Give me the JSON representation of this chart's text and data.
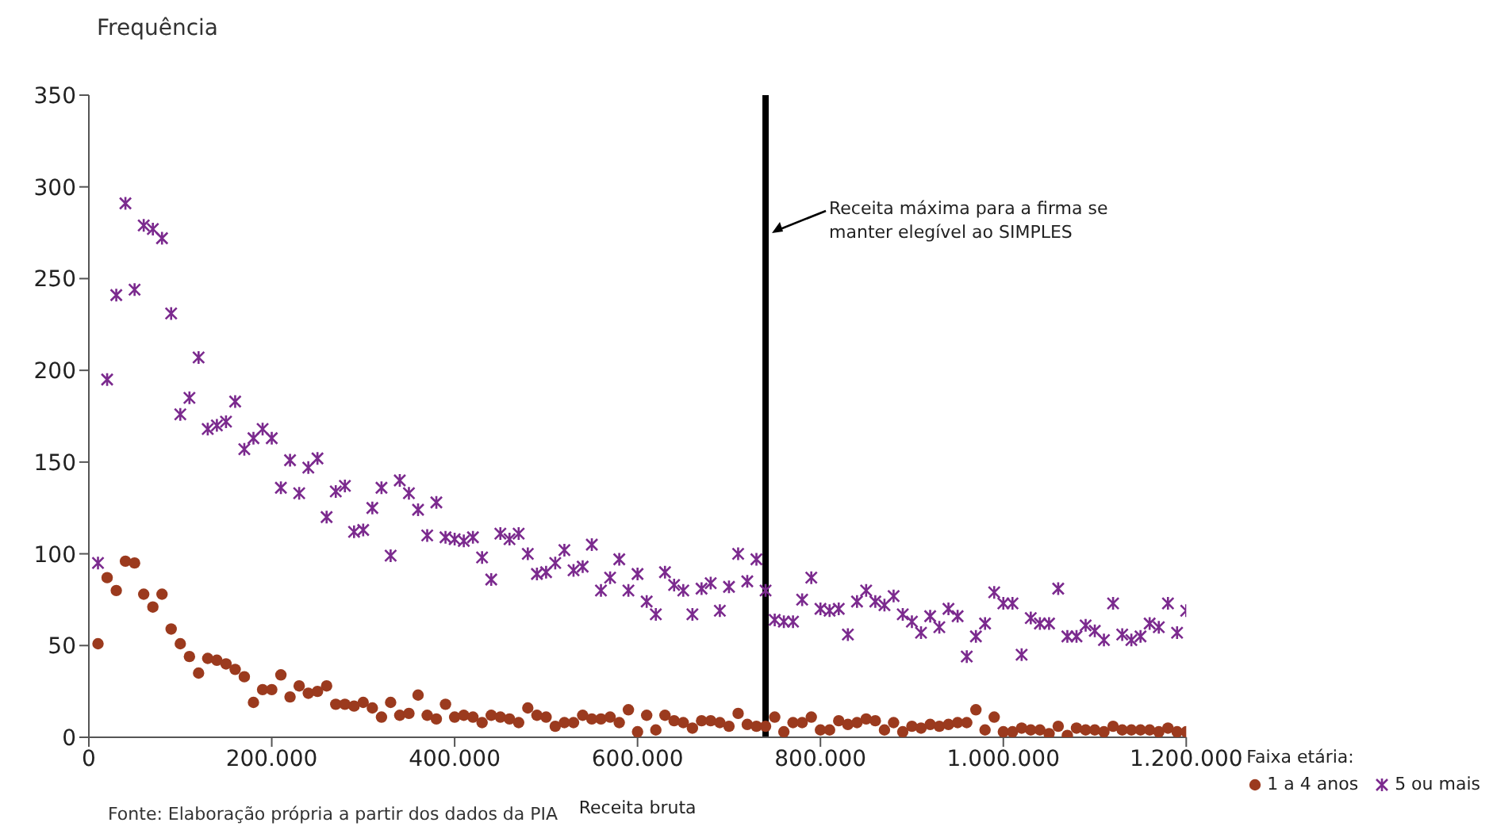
{
  "chart_data": {
    "type": "scatter",
    "ylabel": "Frequência",
    "xlabel": "Receita bruta",
    "legend_title": "Faixa etária:",
    "legend": "bottom right",
    "x": [
      10000,
      20000,
      30000,
      40000,
      50000,
      60000,
      70000,
      80000,
      90000,
      100000,
      110000,
      120000,
      130000,
      140000,
      150000,
      160000,
      170000,
      180000,
      190000,
      200000,
      210000,
      220000,
      230000,
      240000,
      250000,
      260000,
      270000,
      280000,
      290000,
      300000,
      310000,
      320000,
      330000,
      340000,
      350000,
      360000,
      370000,
      380000,
      390000,
      400000,
      410000,
      420000,
      430000,
      440000,
      450000,
      460000,
      470000,
      480000,
      490000,
      500000,
      510000,
      520000,
      530000,
      540000,
      550000,
      560000,
      570000,
      580000,
      590000,
      600000,
      610000,
      620000,
      630000,
      640000,
      650000,
      660000,
      670000,
      680000,
      690000,
      700000,
      710000,
      720000,
      730000,
      740000,
      750000,
      760000,
      770000,
      780000,
      790000,
      800000,
      810000,
      820000,
      830000,
      840000,
      850000,
      860000,
      870000,
      880000,
      890000,
      900000,
      910000,
      920000,
      930000,
      940000,
      950000,
      960000,
      970000,
      980000,
      990000,
      1000000,
      1010000,
      1020000,
      1030000,
      1040000,
      1050000,
      1060000,
      1070000,
      1080000,
      1090000,
      1100000,
      1110000,
      1120000,
      1130000,
      1140000,
      1150000,
      1160000,
      1170000,
      1180000,
      1190000,
      1200000
    ],
    "series": [
      {
        "name": "1 a 4 anos",
        "color": "#9b3a1e",
        "marker": "circle",
        "values": [
          51,
          87,
          80,
          96,
          95,
          78,
          71,
          78,
          59,
          51,
          44,
          35,
          43,
          42,
          40,
          37,
          33,
          19,
          26,
          26,
          34,
          22,
          28,
          24,
          25,
          28,
          18,
          18,
          17,
          19,
          16,
          11,
          19,
          12,
          13,
          23,
          12,
          10,
          18,
          11,
          12,
          11,
          8,
          12,
          11,
          10,
          8,
          16,
          12,
          11,
          6,
          8,
          8,
          12,
          10,
          10,
          11,
          8,
          15,
          3,
          12,
          4,
          12,
          9,
          8,
          5,
          9,
          9,
          8,
          6,
          13,
          7,
          6,
          6,
          11,
          3,
          8,
          8,
          11,
          4,
          4,
          9,
          7,
          8,
          10,
          9,
          4,
          8,
          3,
          6,
          5,
          7,
          6,
          7,
          8,
          8,
          15,
          4,
          11,
          3,
          3,
          5,
          4,
          4,
          2,
          6,
          1,
          5,
          4,
          4,
          3,
          6,
          4,
          4,
          4,
          4,
          3,
          5,
          3,
          3
        ]
      },
      {
        "name": "5 ou mais",
        "color": "#7b2a8e",
        "marker": "cross",
        "values": [
          95,
          195,
          241,
          291,
          244,
          279,
          277,
          272,
          231,
          176,
          185,
          207,
          168,
          170,
          172,
          183,
          157,
          163,
          168,
          163,
          136,
          151,
          133,
          147,
          152,
          120,
          134,
          137,
          112,
          113,
          125,
          136,
          99,
          140,
          133,
          124,
          110,
          128,
          109,
          108,
          107,
          109,
          98,
          86,
          111,
          108,
          111,
          100,
          89,
          90,
          95,
          102,
          91,
          93,
          105,
          80,
          87,
          97,
          80,
          89,
          74,
          67,
          90,
          83,
          80,
          67,
          81,
          84,
          69,
          82,
          100,
          85,
          97,
          80,
          64,
          63,
          63,
          75,
          87,
          70,
          69,
          70,
          56,
          74,
          80,
          74,
          72,
          77,
          67,
          63,
          57,
          66,
          60,
          70,
          66,
          44,
          55,
          62,
          79,
          73,
          73,
          45,
          65,
          62,
          62,
          81,
          55,
          55,
          61,
          58,
          53,
          73,
          56,
          53,
          55,
          62,
          60,
          73,
          57,
          69
        ]
      }
    ],
    "xlim": [
      0,
      1200000
    ],
    "xticks": [
      {
        "value": 0,
        "label": "0"
      },
      {
        "value": 200000,
        "label": "200.000"
      },
      {
        "value": 400000,
        "label": "400.000"
      },
      {
        "value": 600000,
        "label": "600.000"
      },
      {
        "value": 800000,
        "label": "800.000"
      },
      {
        "value": 1000000,
        "label": "1.000.000"
      },
      {
        "value": 1200000,
        "label": "1.200.000"
      }
    ],
    "ylim": [
      0,
      350
    ],
    "yticks": [
      0,
      50,
      100,
      150,
      200,
      250,
      300,
      350
    ],
    "grid": false,
    "ref_lines": [
      {
        "axis": "x",
        "value": 740000,
        "label": "Receita máxima para a firma se manter elegível ao SIMPLES",
        "color": "#000000"
      }
    ],
    "annotations": [
      "Fonte: Elaboração própria a partir dos dados da PIA"
    ]
  }
}
